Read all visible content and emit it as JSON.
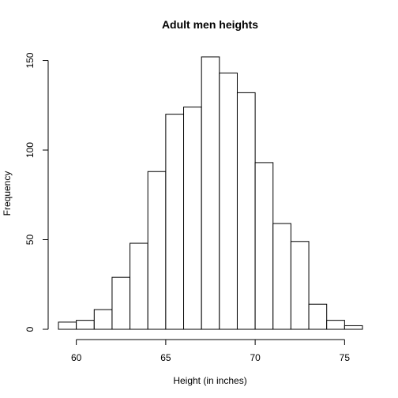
{
  "chart_data": {
    "type": "bar",
    "title": "Adult men heights",
    "xlabel": "Height (in inches)",
    "ylabel": "Frequency",
    "bin_edges": [
      59,
      60,
      61,
      62,
      63,
      64,
      65,
      66,
      67,
      68,
      69,
      70,
      71,
      72,
      73,
      74,
      75,
      76
    ],
    "values": [
      4,
      5,
      11,
      29,
      48,
      88,
      120,
      124,
      152,
      143,
      132,
      93,
      59,
      49,
      14,
      5,
      2
    ],
    "xlim": [
      59,
      76
    ],
    "ylim": [
      0,
      152
    ],
    "x_ticks": [
      60,
      65,
      70,
      75
    ],
    "y_ticks": [
      0,
      50,
      100,
      150
    ],
    "x_tick_labels": [
      "60",
      "65",
      "70",
      "75"
    ],
    "y_tick_labels": [
      "0",
      "50",
      "100",
      "150"
    ],
    "grid": false,
    "legend": "none"
  }
}
